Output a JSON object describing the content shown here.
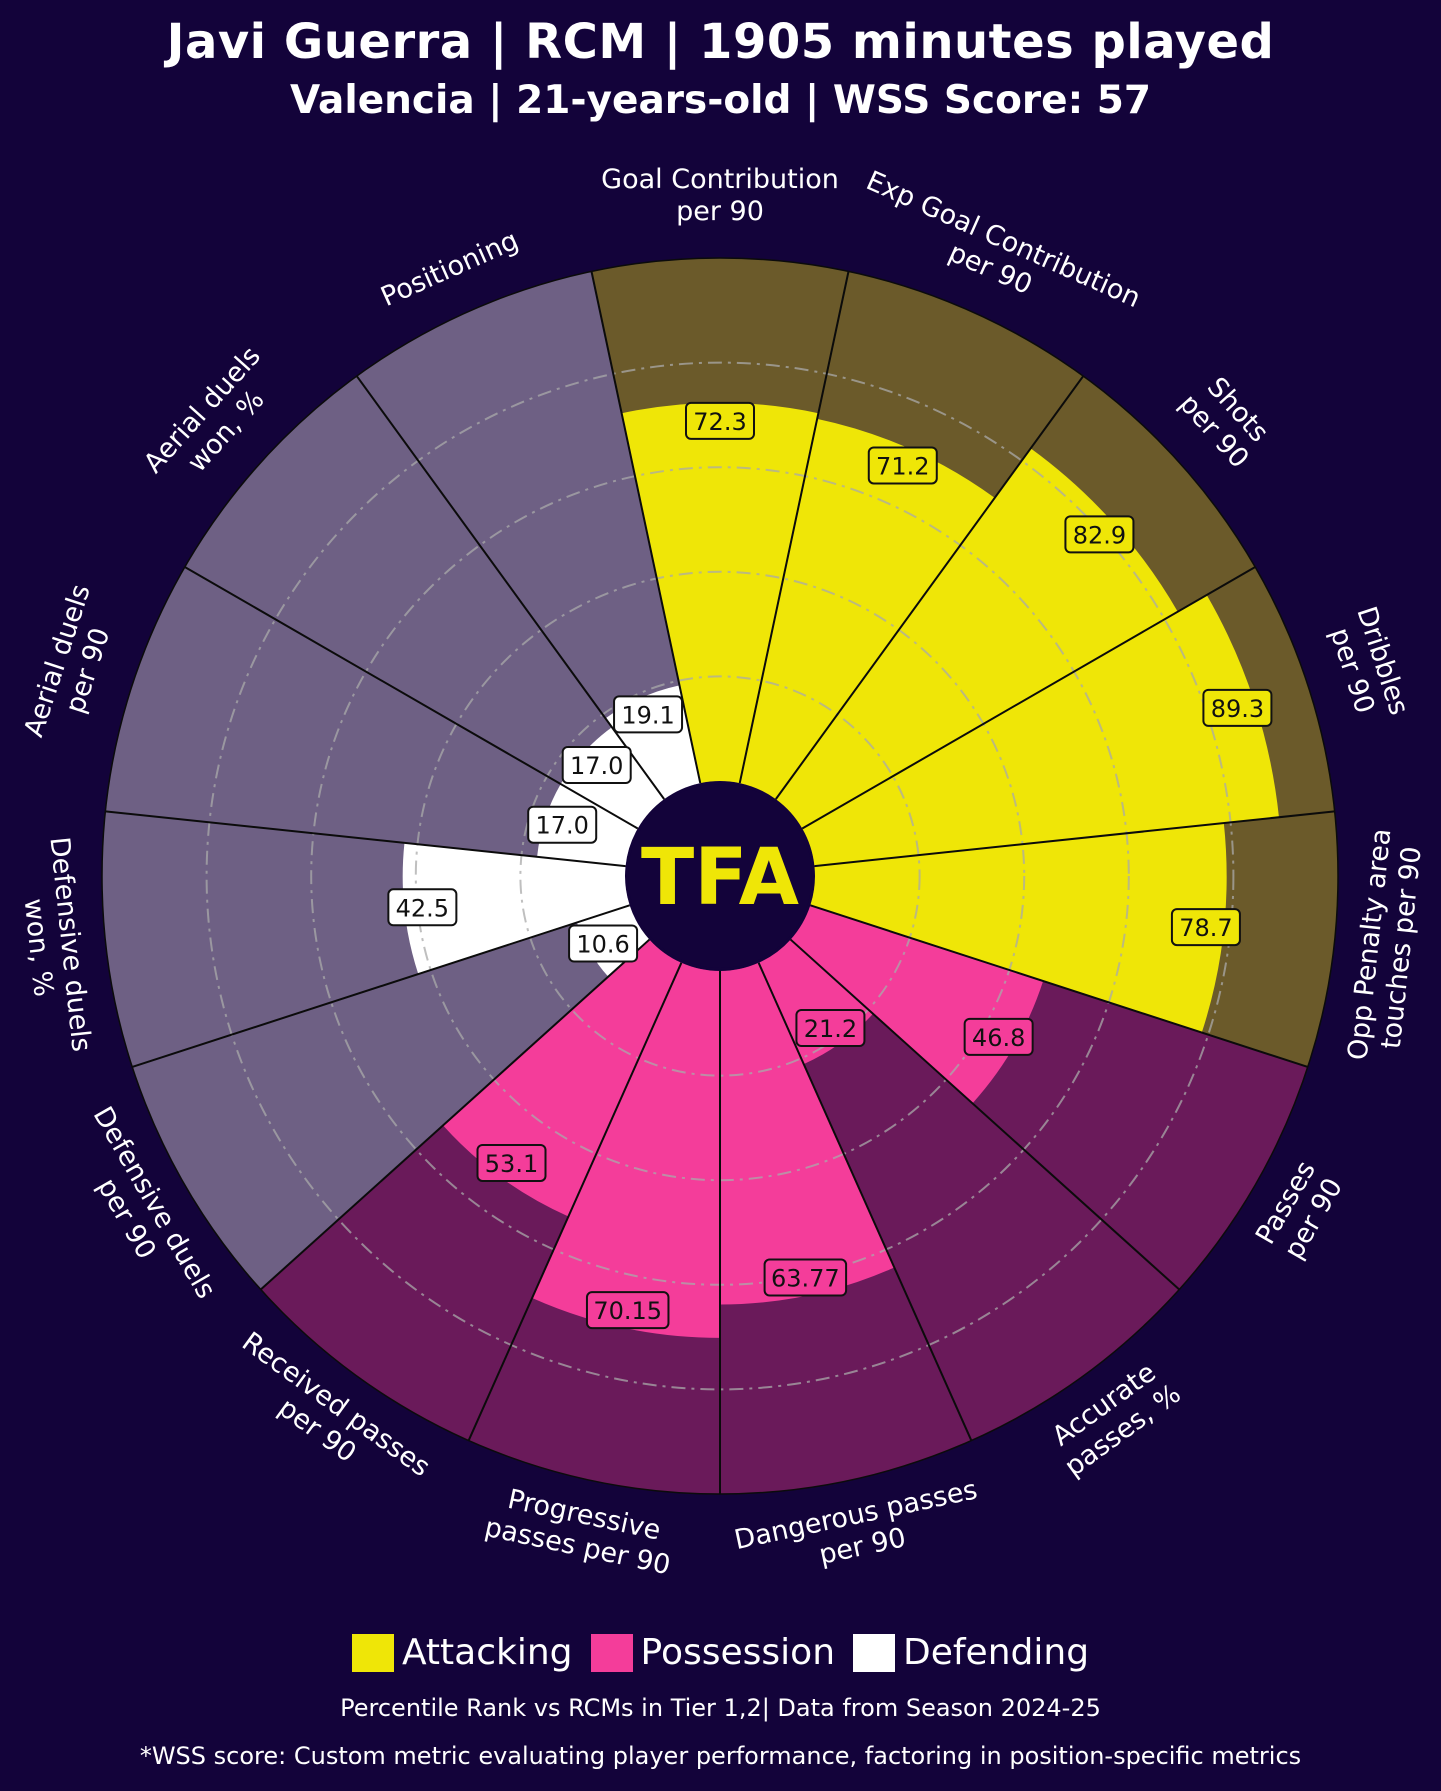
{
  "header": {
    "title": "Javi Guerra | RCM | 1905 minutes played",
    "subtitle": "Valencia | 21-years-old | WSS Score: 57"
  },
  "logo_text": "TFA",
  "colors": {
    "background": "#13033a",
    "attacking": "#efe607",
    "attacking_bg": "#6b5a2a",
    "possession": "#f43d9a",
    "possession_bg": "#6a1a5a",
    "defending": "#ffffff",
    "defending_bg": "#6e6084"
  },
  "chart_data": {
    "type": "radar-pizza",
    "value_range": [
      0,
      100
    ],
    "metrics": [
      {
        "label": "Goal Contribution\nper 90",
        "value": 72.3,
        "display": "72.3",
        "group": "attacking"
      },
      {
        "label": "Exp Goal Contribution\nper 90",
        "value": 71.2,
        "display": "71.2",
        "group": "attacking"
      },
      {
        "label": "Shots\nper 90",
        "value": 82.9,
        "display": "82.9",
        "group": "attacking"
      },
      {
        "label": "Dribbles\nper 90",
        "value": 89.3,
        "display": "89.3",
        "group": "attacking"
      },
      {
        "label": "Opp Penalty area\ntouches per 90",
        "value": 78.7,
        "display": "78.7",
        "group": "attacking"
      },
      {
        "label": "Passes\nper 90",
        "value": 46.8,
        "display": "46.8",
        "group": "possession"
      },
      {
        "label": "Accurate\npasses, %",
        "value": 21.2,
        "display": "21.2",
        "group": "possession"
      },
      {
        "label": "Dangerous passes\nper 90",
        "value": 63.77,
        "display": "63.77",
        "group": "possession"
      },
      {
        "label": "Progressive\npasses per 90",
        "value": 70.15,
        "display": "70.15",
        "group": "possession"
      },
      {
        "label": "Received passes\nper 90",
        "value": 53.1,
        "display": "53.1",
        "group": "possession"
      },
      {
        "label": "Defensive duels\nper 90",
        "value": 10.6,
        "display": "10.6",
        "group": "defending"
      },
      {
        "label": "Defensive duels\nwon, %",
        "value": 42.5,
        "display": "42.5",
        "group": "defending"
      },
      {
        "label": "Aerial duels\nper 90",
        "value": 17.0,
        "display": "17.0",
        "group": "defending"
      },
      {
        "label": "Aerial duels\nwon, %",
        "value": 17.0,
        "display": "17.0",
        "group": "defending"
      },
      {
        "label": "Positioning",
        "value": 19.1,
        "display": "19.1",
        "group": "defending"
      }
    ],
    "legend": [
      {
        "name": "Attacking",
        "group": "attacking"
      },
      {
        "name": "Possession",
        "group": "possession"
      },
      {
        "name": "Defending",
        "group": "defending"
      }
    ],
    "legend_position": "bottom-center",
    "gridlines": "dash-dot rings"
  },
  "footer": {
    "note": "Percentile Rank vs RCMs in Tier 1,2| Data from Season 2024-25",
    "disclaimer": "*WSS score: Custom metric evaluating player performance, factoring in position-specific metrics"
  }
}
